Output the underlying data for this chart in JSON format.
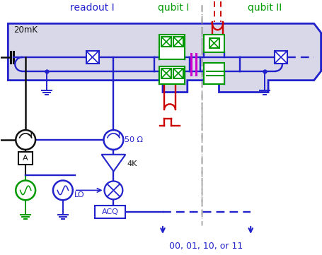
{
  "blue": "#2222cc",
  "green": "#009900",
  "red": "#cc0000",
  "purple": "#cc00cc",
  "black": "#111111",
  "chip_bg": "#d8d8e8",
  "title_readout": "readout I",
  "title_qubit1": "qubit I",
  "title_qubit2": "qubit II",
  "label_20mK": "20mK",
  "label_50ohm": "50 Ω",
  "label_4K": "4K",
  "label_LO": "LO",
  "label_ACQ": "ACQ",
  "label_result": "00, 01, 10, or 11"
}
